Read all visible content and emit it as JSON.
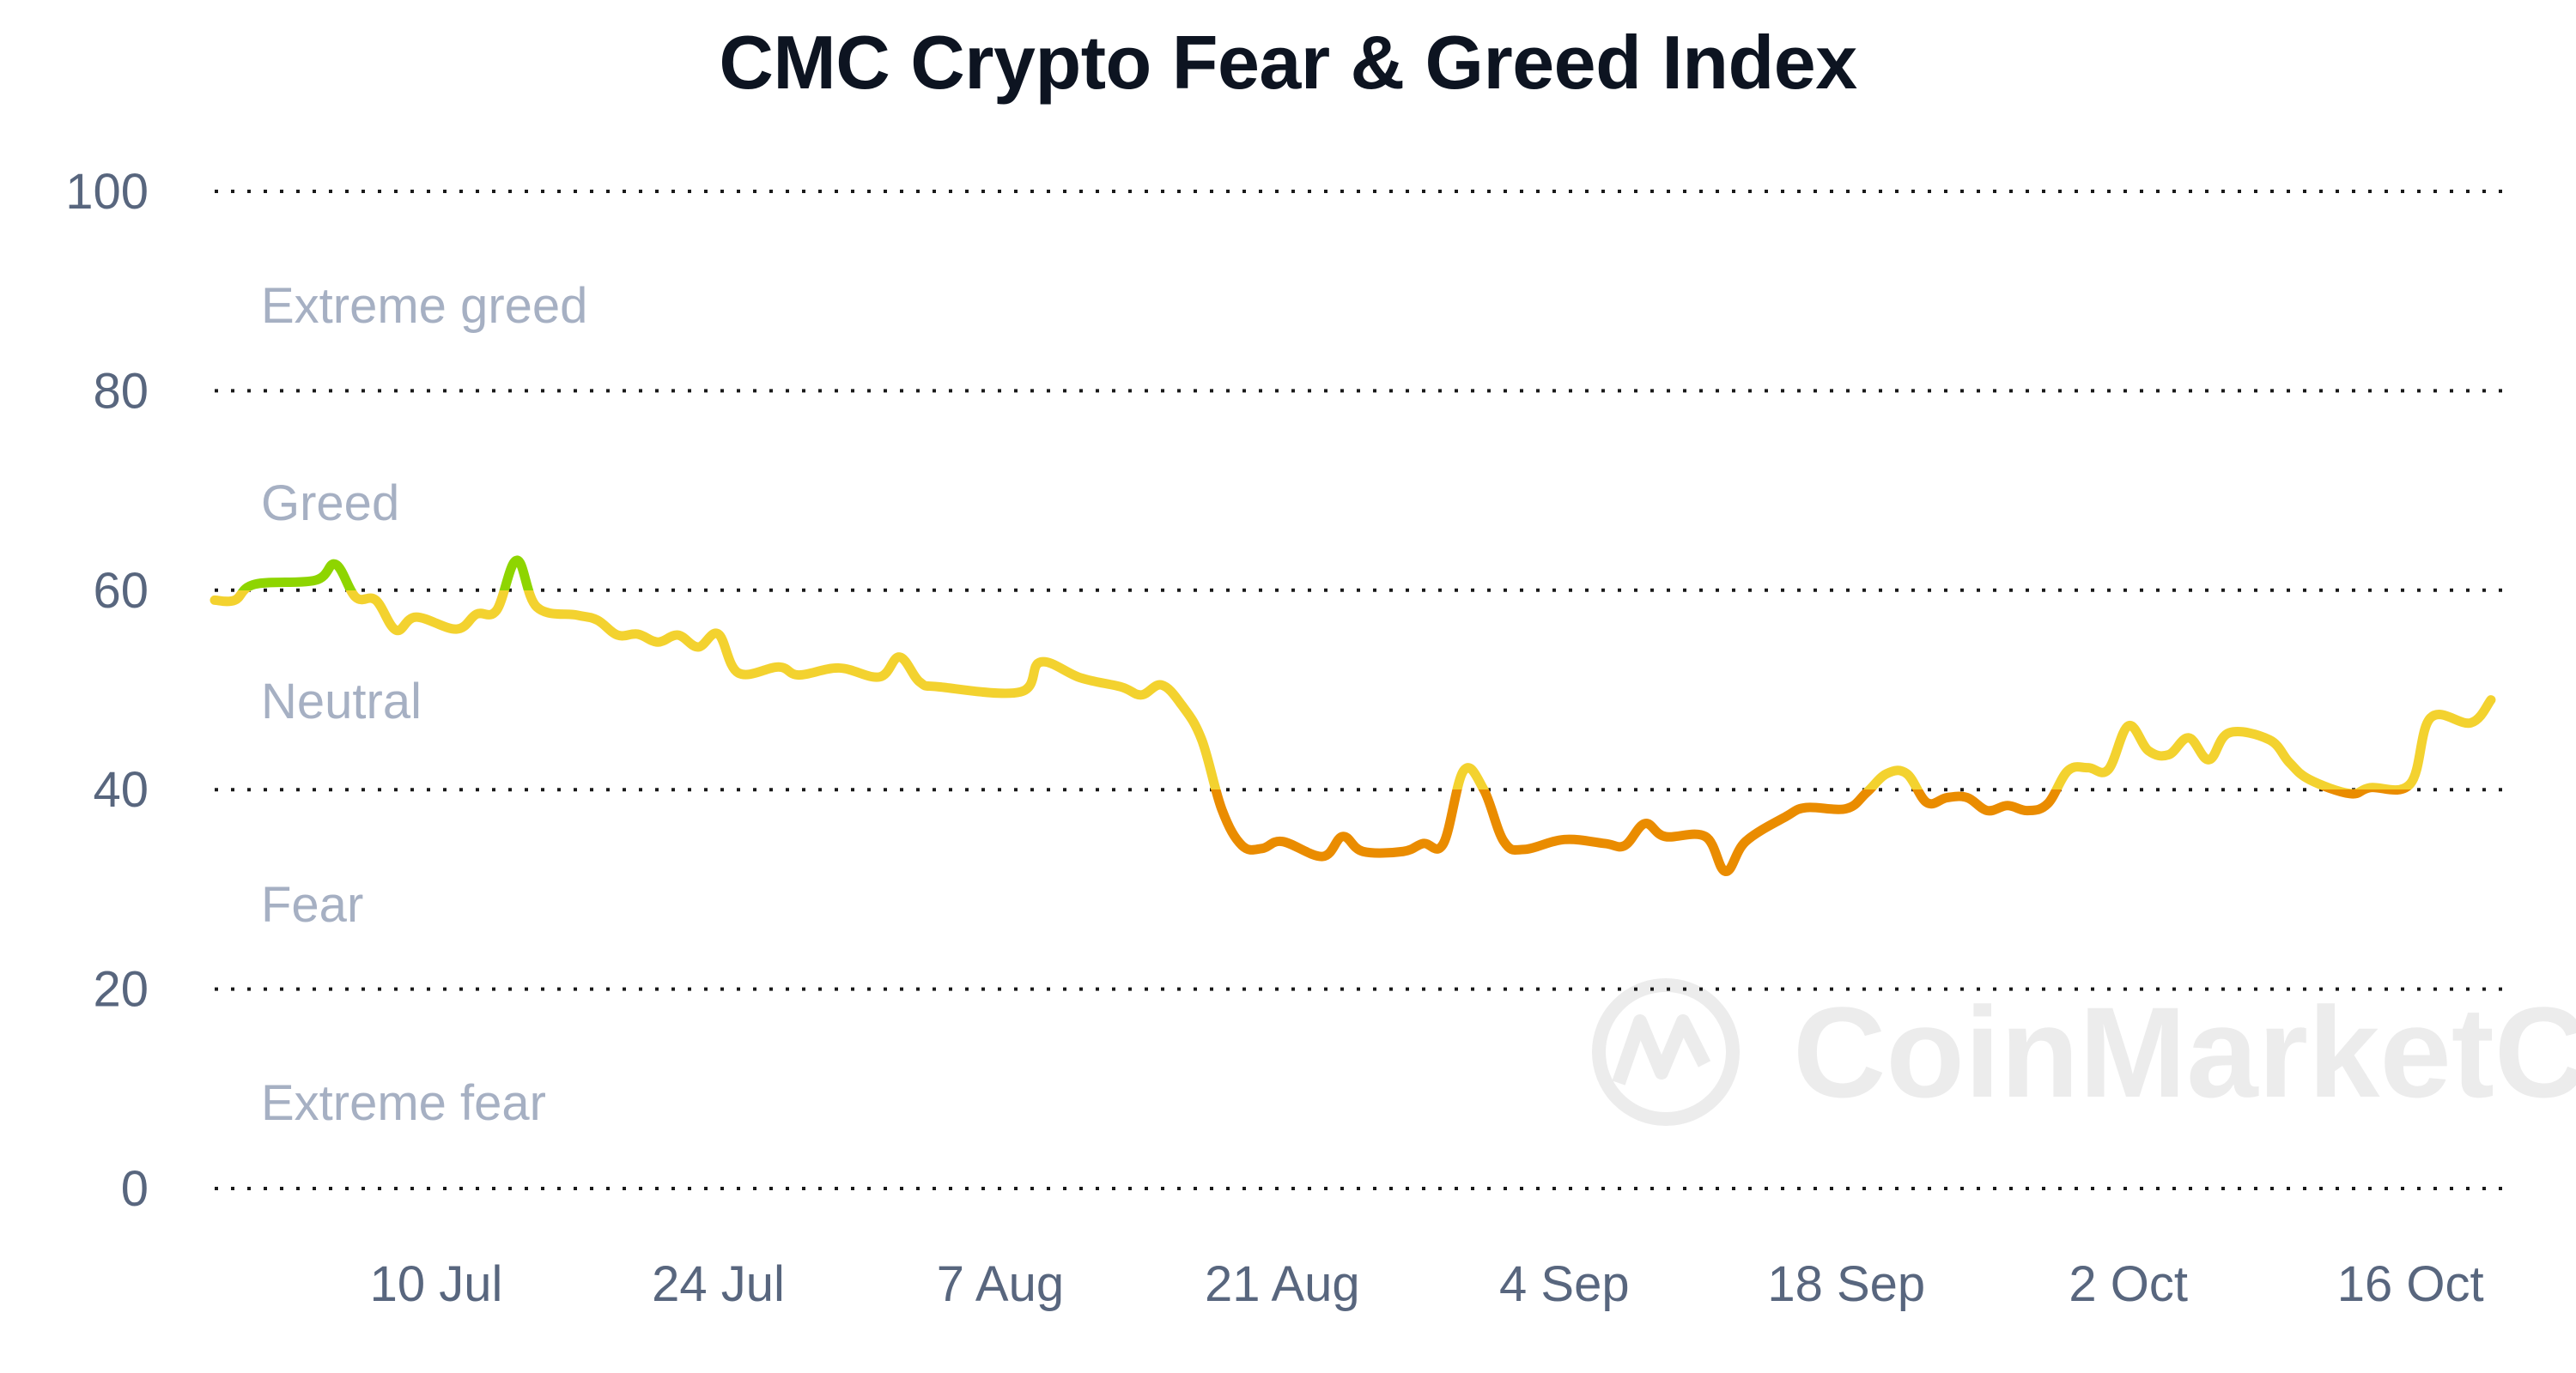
{
  "chart_data": {
    "type": "line",
    "title": "CMC Crypto Fear & Greed Index",
    "xlabel": "",
    "ylabel": "",
    "ylim": [
      0,
      100
    ],
    "yticks": [
      "0",
      "20",
      "40",
      "60",
      "80",
      "100"
    ],
    "xticks": [
      "10 Jul",
      "24 Jul",
      "7 Aug",
      "21 Aug",
      "4 Sep",
      "18 Sep",
      "2 Oct",
      "16 Oct"
    ],
    "xlim": [
      "29 Jun",
      "20 Oct"
    ],
    "grid": "horizontal dotted",
    "zones": [
      "Extreme greed",
      "Greed",
      "Neutral",
      "Fear",
      "Extreme fear"
    ],
    "colors": {
      "greed": "#8ed500",
      "neutral": "#f3d22f",
      "fear": "#ea8c00",
      "grid": "#1a1a1a",
      "zone_text": "#a6b0c3",
      "tick_text": "#58667e"
    },
    "watermark": "CoinMarketCap",
    "series": [
      {
        "x": [
          "29 Jun",
          "30 Jun",
          "1 Jul",
          "4 Jul",
          "5 Jul",
          "6 Jul",
          "7 Jul",
          "8 Jul",
          "9 Jul",
          "11 Jul",
          "12 Jul",
          "13 Jul",
          "14 Jul",
          "15 Jul",
          "17 Jul",
          "18 Jul",
          "19 Jul",
          "20 Jul",
          "21 Jul",
          "22 Jul",
          "23 Jul",
          "24 Jul",
          "25 Jul",
          "27 Jul",
          "28 Jul",
          "30 Jul",
          "1 Aug",
          "2 Aug",
          "3 Aug",
          "4 Aug",
          "8 Aug",
          "9 Aug",
          "11 Aug",
          "13 Aug",
          "14 Aug",
          "15 Aug",
          "16 Aug",
          "17 Aug",
          "18 Aug",
          "19 Aug",
          "20 Aug",
          "21 Aug",
          "23 Aug",
          "24 Aug",
          "25 Aug",
          "27 Aug",
          "28 Aug",
          "29 Aug",
          "30 Aug",
          "31 Aug",
          "1 Sep",
          "2 Sep",
          "4 Sep",
          "6 Sep",
          "7 Sep",
          "8 Sep",
          "9 Sep",
          "11 Sep",
          "12 Sep",
          "13 Sep",
          "15 Sep",
          "16 Sep",
          "18 Sep",
          "19 Sep",
          "20 Sep",
          "21 Sep",
          "22 Sep",
          "23 Sep",
          "24 Sep",
          "25 Sep",
          "26 Sep",
          "27 Sep",
          "28 Sep",
          "29 Sep",
          "30 Sep",
          "1 Oct",
          "2 Oct",
          "3 Oct",
          "4 Oct",
          "5 Oct",
          "6 Oct",
          "7 Oct",
          "9 Oct",
          "10 Oct",
          "11 Oct",
          "13 Oct",
          "14 Oct",
          "16 Oct",
          "17 Oct",
          "19 Oct",
          "20 Oct"
        ],
        "values": [
          59,
          59,
          60.6,
          61,
          62.6,
          59.3,
          59,
          56,
          57.3,
          56.1,
          57.6,
          58,
          63,
          58.3,
          57.5,
          57,
          55.5,
          55.6,
          54.8,
          55.5,
          54.3,
          55.6,
          51.7,
          52.3,
          51.5,
          52.2,
          51.3,
          53.3,
          50.8,
          50.3,
          49.8,
          52.8,
          51.2,
          50.3,
          49.5,
          50.5,
          48.5,
          45,
          38,
          34.4,
          34.1,
          34.8,
          33.3,
          35.3,
          33.8,
          33.8,
          34.6,
          34.6,
          41.9,
          40,
          34.8,
          34,
          35,
          34.6,
          34.4,
          36.6,
          35.3,
          35.3,
          31.8,
          34.8,
          37.3,
          38.2,
          38.1,
          39.7,
          41.6,
          41.6,
          38.7,
          39.2,
          39.2,
          37.9,
          38.4,
          37.9,
          38.6,
          41.9,
          42.2,
          42,
          46.4,
          43.9,
          43.5,
          45.2,
          43,
          45.7,
          45,
          42.7,
          41,
          39.6,
          40.2,
          40.6,
          47.2,
          46.7,
          49
        ]
      }
    ]
  }
}
